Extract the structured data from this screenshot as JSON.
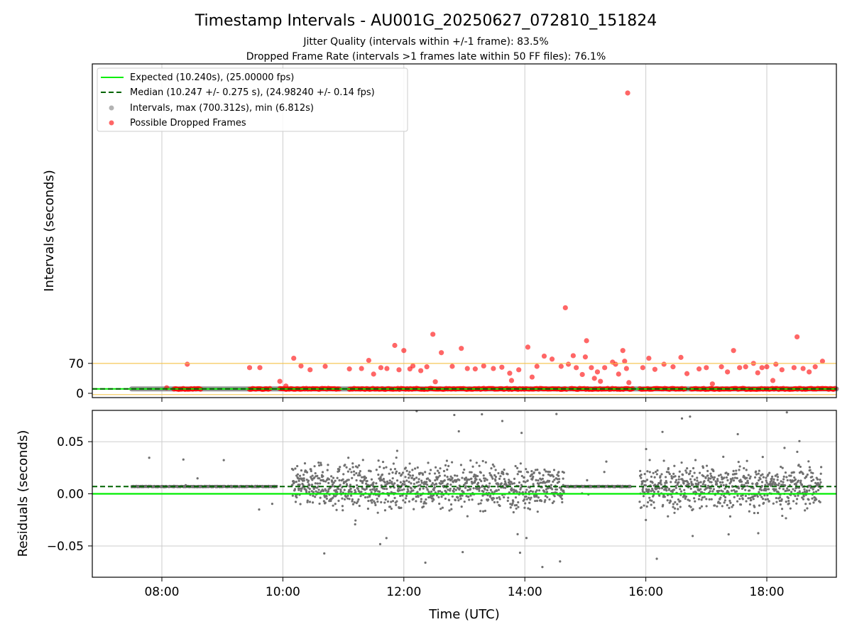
{
  "title": "Timestamp Intervals - AU001G_20250627_072810_151824",
  "subtitle_lines": [
    "Jitter Quality (intervals within +/-1 frame): 83.5%",
    "Dropped Frame Rate (intervals >1 frames late within 50 FF files): 76.1%"
  ],
  "colors": {
    "expected": "#00ee00",
    "median": "#006400",
    "intervals": "#808080",
    "dropped": "#ff0000",
    "threshold": "#f5c242",
    "grid": "#cccccc"
  },
  "chart_data": [
    {
      "type": "scatter",
      "ylabel": "Intervals (seconds)",
      "xlabel": "",
      "xlim_hours": [
        6.85,
        19.15
      ],
      "ylim": [
        -10,
        770
      ],
      "x_ticks": [
        8,
        10,
        12,
        14,
        16,
        18
      ],
      "y_ticks": [
        0,
        70
      ],
      "grid": "x",
      "legend_position": "top-left",
      "legend": [
        {
          "key": "expected",
          "label": "Expected (10.240s), (25.00000 fps)",
          "marker": "solid-line"
        },
        {
          "key": "median",
          "label": "Median (10.247 +/- 0.275 s), (24.98240 +/- 0.14 fps)",
          "marker": "dashed-line"
        },
        {
          "key": "intervals",
          "label": "Intervals, max (700.312s), min (6.812s)",
          "marker": "dot"
        },
        {
          "key": "dropped",
          "label": "Possible Dropped Frames",
          "marker": "dot"
        }
      ],
      "lines": {
        "expected": 10.24,
        "median": 10.247,
        "threshold_high": 70,
        "threshold_low": -3
      },
      "intervals_band": {
        "x_start": 7.5,
        "x_end": 19.15,
        "value": 10.3
      },
      "dropped_band_segments": [
        [
          8.2,
          8.65
        ],
        [
          9.45,
          9.8
        ],
        [
          9.95,
          10.95
        ],
        [
          11.1,
          14.7
        ],
        [
          14.75,
          15.8
        ],
        [
          15.9,
          16.65
        ],
        [
          16.75,
          19.15
        ]
      ],
      "dropped_outliers": [
        {
          "x": 8.08,
          "y": 13
        },
        {
          "x": 8.42,
          "y": 68
        },
        {
          "x": 9.45,
          "y": 60
        },
        {
          "x": 9.62,
          "y": 60
        },
        {
          "x": 9.95,
          "y": 28
        },
        {
          "x": 10.05,
          "y": 17
        },
        {
          "x": 10.18,
          "y": 82
        },
        {
          "x": 10.3,
          "y": 64
        },
        {
          "x": 10.45,
          "y": 55
        },
        {
          "x": 10.7,
          "y": 63
        },
        {
          "x": 11.1,
          "y": 57
        },
        {
          "x": 11.3,
          "y": 58
        },
        {
          "x": 11.42,
          "y": 77
        },
        {
          "x": 11.5,
          "y": 45
        },
        {
          "x": 11.62,
          "y": 60
        },
        {
          "x": 11.72,
          "y": 58
        },
        {
          "x": 11.85,
          "y": 112
        },
        {
          "x": 11.92,
          "y": 55
        },
        {
          "x": 12.0,
          "y": 100
        },
        {
          "x": 12.1,
          "y": 57
        },
        {
          "x": 12.15,
          "y": 64
        },
        {
          "x": 12.28,
          "y": 53
        },
        {
          "x": 12.38,
          "y": 62
        },
        {
          "x": 12.48,
          "y": 138
        },
        {
          "x": 12.52,
          "y": 27
        },
        {
          "x": 12.62,
          "y": 95
        },
        {
          "x": 12.8,
          "y": 63
        },
        {
          "x": 12.95,
          "y": 105
        },
        {
          "x": 13.05,
          "y": 58
        },
        {
          "x": 13.18,
          "y": 57
        },
        {
          "x": 13.32,
          "y": 64
        },
        {
          "x": 13.48,
          "y": 58
        },
        {
          "x": 13.62,
          "y": 61
        },
        {
          "x": 13.75,
          "y": 47
        },
        {
          "x": 13.78,
          "y": 30
        },
        {
          "x": 13.9,
          "y": 55
        },
        {
          "x": 14.05,
          "y": 108
        },
        {
          "x": 14.12,
          "y": 38
        },
        {
          "x": 14.2,
          "y": 63
        },
        {
          "x": 14.32,
          "y": 87
        },
        {
          "x": 14.45,
          "y": 80
        },
        {
          "x": 14.6,
          "y": 63
        },
        {
          "x": 14.67,
          "y": 200
        },
        {
          "x": 14.72,
          "y": 68
        },
        {
          "x": 14.8,
          "y": 88
        },
        {
          "x": 14.85,
          "y": 60
        },
        {
          "x": 14.95,
          "y": 44
        },
        {
          "x": 15.0,
          "y": 85
        },
        {
          "x": 15.02,
          "y": 123
        },
        {
          "x": 15.1,
          "y": 60
        },
        {
          "x": 15.15,
          "y": 35
        },
        {
          "x": 15.2,
          "y": 50
        },
        {
          "x": 15.25,
          "y": 28
        },
        {
          "x": 15.32,
          "y": 60
        },
        {
          "x": 15.45,
          "y": 73
        },
        {
          "x": 15.5,
          "y": 68
        },
        {
          "x": 15.55,
          "y": 45
        },
        {
          "x": 15.62,
          "y": 100
        },
        {
          "x": 15.65,
          "y": 75
        },
        {
          "x": 15.68,
          "y": 58
        },
        {
          "x": 15.72,
          "y": 25
        },
        {
          "x": 15.7,
          "y": 702
        },
        {
          "x": 15.95,
          "y": 60
        },
        {
          "x": 16.05,
          "y": 82
        },
        {
          "x": 16.15,
          "y": 56
        },
        {
          "x": 16.3,
          "y": 68
        },
        {
          "x": 16.45,
          "y": 62
        },
        {
          "x": 16.58,
          "y": 84
        },
        {
          "x": 16.68,
          "y": 46
        },
        {
          "x": 16.88,
          "y": 57
        },
        {
          "x": 17.0,
          "y": 60
        },
        {
          "x": 17.1,
          "y": 22
        },
        {
          "x": 17.25,
          "y": 62
        },
        {
          "x": 17.35,
          "y": 50
        },
        {
          "x": 17.45,
          "y": 100
        },
        {
          "x": 17.55,
          "y": 60
        },
        {
          "x": 17.65,
          "y": 62
        },
        {
          "x": 17.78,
          "y": 70
        },
        {
          "x": 17.85,
          "y": 48
        },
        {
          "x": 17.92,
          "y": 60
        },
        {
          "x": 18.0,
          "y": 62
        },
        {
          "x": 18.1,
          "y": 30
        },
        {
          "x": 18.15,
          "y": 68
        },
        {
          "x": 18.25,
          "y": 55
        },
        {
          "x": 18.45,
          "y": 60
        },
        {
          "x": 18.5,
          "y": 132
        },
        {
          "x": 18.6,
          "y": 58
        },
        {
          "x": 18.7,
          "y": 50
        },
        {
          "x": 18.8,
          "y": 62
        },
        {
          "x": 18.92,
          "y": 75
        }
      ]
    },
    {
      "type": "scatter",
      "ylabel": "Residuals (seconds)",
      "xlabel": "Time (UTC)",
      "xlim_hours": [
        6.85,
        19.15
      ],
      "ylim": [
        -0.08,
        0.08
      ],
      "x_ticks": [
        8,
        10,
        12,
        14,
        16,
        18
      ],
      "x_tick_labels": [
        "08:00",
        "10:00",
        "12:00",
        "14:00",
        "16:00",
        "18:00"
      ],
      "y_ticks": [
        0.05,
        0.0,
        -0.05
      ],
      "y_tick_labels": [
        "0.05",
        "0.00",
        "−0.05"
      ],
      "grid": "both",
      "lines": {
        "expected": 0.0,
        "median": 0.007
      },
      "residual_segments": [
        {
          "x_start": 7.5,
          "x_end": 9.9,
          "spread": 0.0
        },
        {
          "x_start": 10.15,
          "x_end": 14.65,
          "spread": 0.022
        },
        {
          "x_start": 14.65,
          "x_end": 15.75,
          "spread": 0.0
        },
        {
          "x_start": 15.9,
          "x_end": 18.9,
          "spread": 0.022
        }
      ]
    }
  ]
}
